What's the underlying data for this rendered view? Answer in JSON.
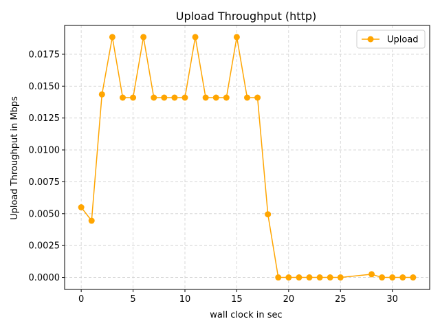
{
  "chart_data": {
    "type": "line",
    "title": "Upload Throughput (http)",
    "xlabel": "wall clock in sec",
    "ylabel": "Upload Throughput in Mbps",
    "xlim": [
      -1.6,
      33.6
    ],
    "ylim": [
      -0.00094,
      0.01976
    ],
    "xticks": [
      0,
      5,
      10,
      15,
      20,
      25,
      30
    ],
    "yticks": [
      0.0,
      0.0025,
      0.005,
      0.0075,
      0.01,
      0.0125,
      0.015,
      0.0175
    ],
    "ytick_labels": [
      "0.0000",
      "0.0025",
      "0.0050",
      "0.0075",
      "0.0100",
      "0.0125",
      "0.0150",
      "0.0175"
    ],
    "grid": true,
    "legend_position": "top-right",
    "colors": {
      "series": "#FFA500"
    },
    "series": [
      {
        "name": "Upload",
        "x": [
          0,
          1,
          2,
          3,
          4,
          5,
          6,
          7,
          8,
          9,
          10,
          11,
          12,
          13,
          14,
          15,
          16,
          17,
          18,
          19,
          20,
          21,
          22,
          23,
          24,
          25,
          28,
          29,
          30,
          31,
          32
        ],
        "y": [
          0.0055,
          0.00445,
          0.01435,
          0.01885,
          0.0141,
          0.0141,
          0.01885,
          0.0141,
          0.0141,
          0.0141,
          0.0141,
          0.01885,
          0.0141,
          0.0141,
          0.0141,
          0.01885,
          0.0141,
          0.0141,
          0.00495,
          0.0,
          0.0,
          0.0,
          0.0,
          0.0,
          0.0,
          0.0,
          0.00025,
          0.0,
          0.0,
          0.0,
          0.0
        ]
      }
    ]
  }
}
